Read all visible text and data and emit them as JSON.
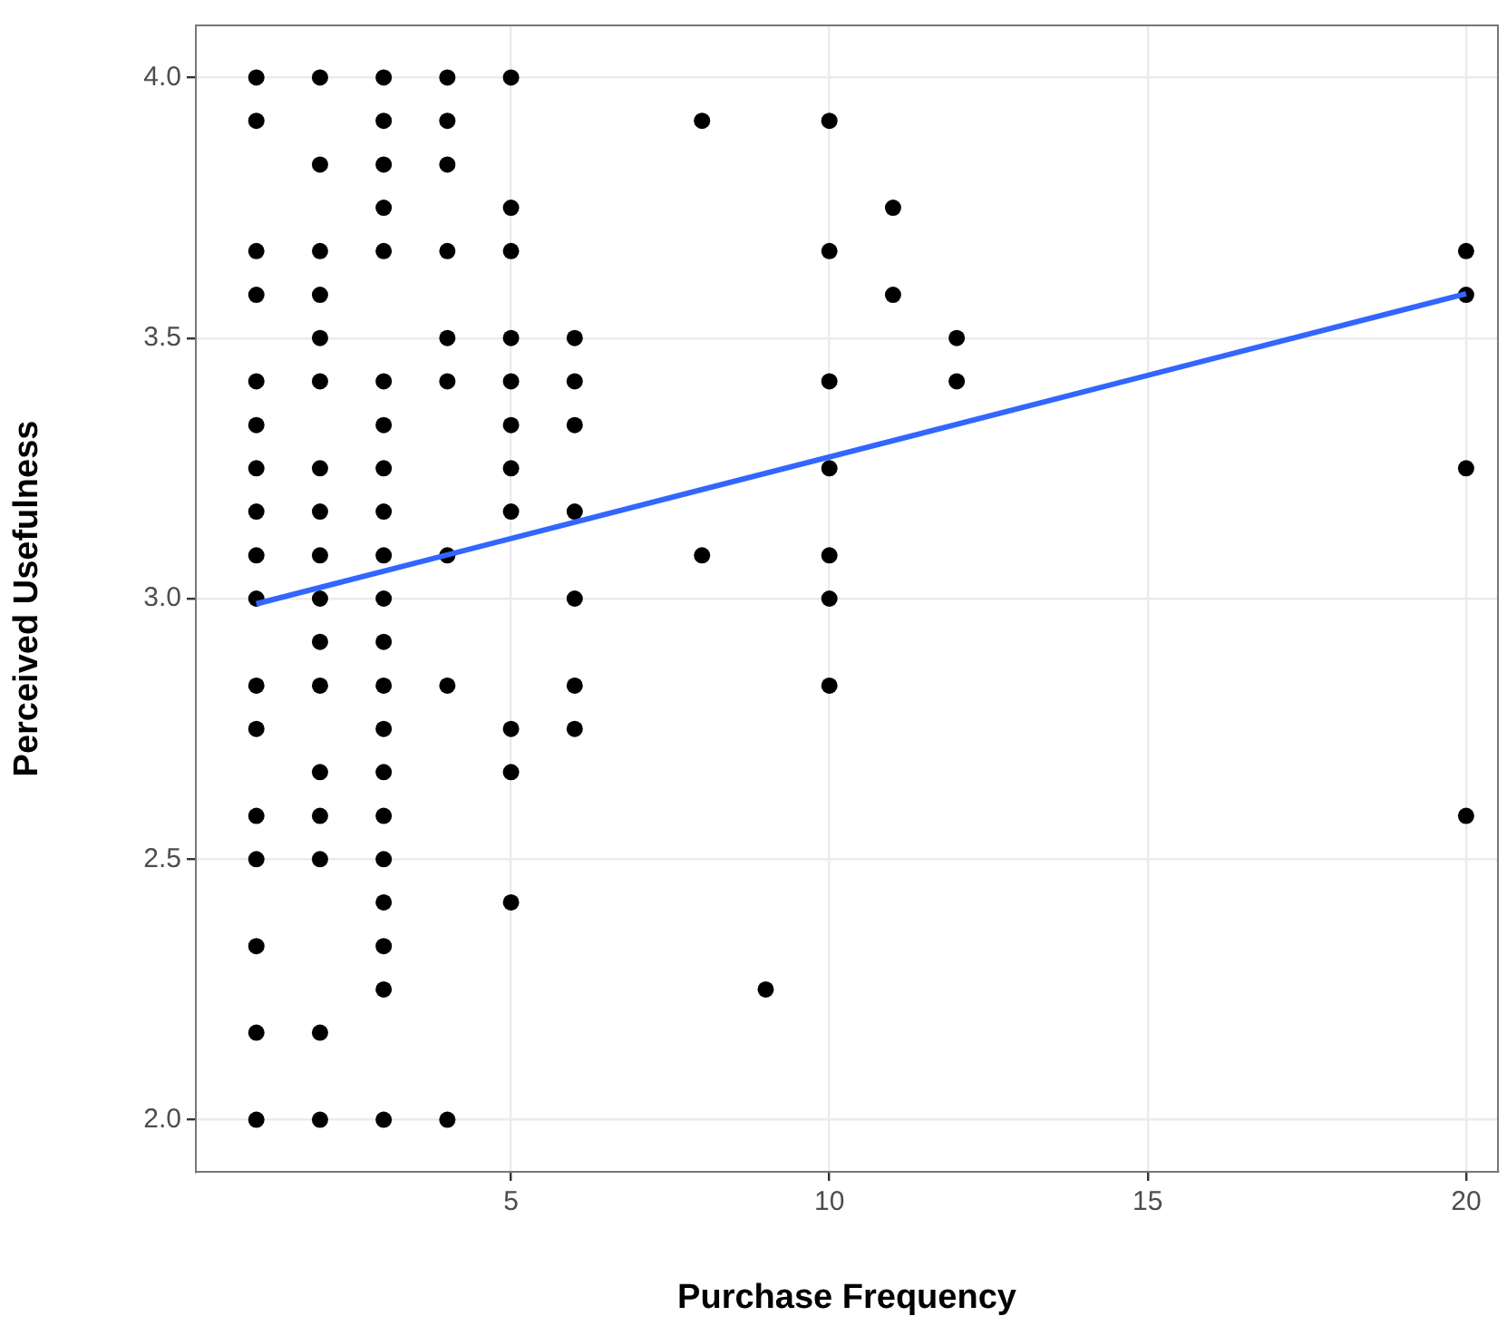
{
  "chart_data": {
    "type": "scatter",
    "xlabel": "Purchase Frequency",
    "ylabel": "Perceived Usefulness",
    "xlim": [
      0.05,
      20.5
    ],
    "ylim": [
      1.9,
      4.1
    ],
    "xticks": [
      5,
      10,
      15,
      20
    ],
    "yticks": [
      {
        "value": 2,
        "label": "2.0"
      },
      {
        "value": 2.5,
        "label": "2.5"
      },
      {
        "value": 3,
        "label": "3.0"
      },
      {
        "value": 3.5,
        "label": "3.5"
      },
      {
        "value": 4,
        "label": "4.0"
      }
    ],
    "grid": true,
    "legend": false,
    "series": [
      {
        "marker": "circle",
        "color": "#000000",
        "x": [
          1,
          1,
          1,
          1,
          1,
          1,
          1,
          1,
          1,
          1,
          1,
          1,
          1,
          1,
          1,
          1,
          1,
          2,
          2,
          2,
          2,
          2,
          2,
          2,
          2,
          2,
          2,
          2,
          2,
          2,
          2,
          2,
          2,
          2,
          3,
          3,
          3,
          3,
          3,
          3,
          3,
          3,
          3,
          3,
          3,
          3,
          3,
          3,
          3,
          3,
          3,
          3,
          3,
          3,
          3,
          4,
          4,
          4,
          4,
          4,
          4,
          4,
          4,
          4,
          5,
          5,
          5,
          5,
          5,
          5,
          5,
          5,
          5,
          5,
          5,
          6,
          6,
          6,
          6,
          6,
          6,
          6,
          8,
          8,
          9,
          10,
          10,
          10,
          10,
          10,
          10,
          10,
          11,
          11,
          12,
          12,
          20,
          20,
          20,
          20
        ],
        "values": [
          4.0,
          3.917,
          3.667,
          3.583,
          3.417,
          3.333,
          3.25,
          3.167,
          3.083,
          3.0,
          2.833,
          2.75,
          2.583,
          2.5,
          2.333,
          2.167,
          2.0,
          4.0,
          3.833,
          3.667,
          3.583,
          3.5,
          3.417,
          3.25,
          3.167,
          3.083,
          3.0,
          2.917,
          2.833,
          2.667,
          2.583,
          2.5,
          2.167,
          2.0,
          4.0,
          3.917,
          3.833,
          3.75,
          3.667,
          3.417,
          3.333,
          3.25,
          3.167,
          3.083,
          3.0,
          2.917,
          2.833,
          2.75,
          2.667,
          2.583,
          2.5,
          2.417,
          2.333,
          2.25,
          2.0,
          4.0,
          3.917,
          3.833,
          3.667,
          3.5,
          3.417,
          3.083,
          2.833,
          2.0,
          4.0,
          3.75,
          3.667,
          3.5,
          3.417,
          3.333,
          3.25,
          3.167,
          2.75,
          2.667,
          2.417,
          3.5,
          3.417,
          3.333,
          3.167,
          3.0,
          2.833,
          2.75,
          3.917,
          3.083,
          2.25,
          3.917,
          3.667,
          3.417,
          3.25,
          3.083,
          3.0,
          2.833,
          3.75,
          3.583,
          3.5,
          3.417,
          3.667,
          3.583,
          3.25,
          2.583
        ]
      },
      {
        "type": "line",
        "color": "#3366ff",
        "x": [
          1,
          20
        ],
        "values": [
          2.99,
          3.585
        ]
      }
    ]
  }
}
